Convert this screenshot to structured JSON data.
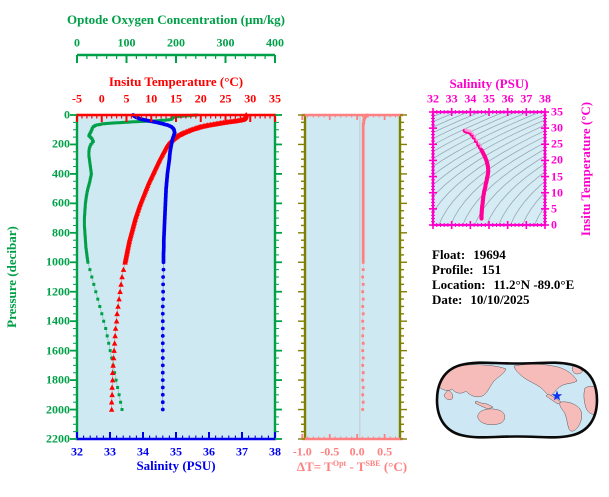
{
  "colors": {
    "oxygen": "#00a048",
    "temperature": "#ff0000",
    "salinity": "#0000ee",
    "delta_t": "#ff8080",
    "olive_axis": "#7f7f00",
    "magenta": "#ff00cc",
    "ts_curve": "#ff0099",
    "ts_curve_light": "#ff9ad8",
    "plot_bg": "#cfe9f3",
    "contour_gray": "#9aa8b2",
    "map_land": "#f6bcba",
    "map_ocean": "#cde7f5",
    "map_outline": "#0a0a0a",
    "star_blue": "#1133ee"
  },
  "info": {
    "float_label": "Float:",
    "float_value": "19694",
    "profile_label": "Profile:",
    "profile_value": "151",
    "location_label": "Location:",
    "location_value": "11.2°N  -89.0°E",
    "date_label": "Date:",
    "date_value": "10/10/2025"
  },
  "delta_t_label": {
    "prefix": "ΔT= T",
    "sup1": "Opt",
    "mid": " - T",
    "sup2": "SBE",
    "suffix": " (°C)"
  },
  "map": {
    "marker": "float-location-star",
    "marker_location": "11.2°N -89.0°E"
  },
  "chart_data": {
    "type": "line",
    "panels": {
      "main_profile": {
        "pressure_axis": {
          "label": "Pressure (decibar)",
          "min": 0,
          "max": 2200,
          "tick_values": [
            0,
            200,
            400,
            600,
            800,
            1000,
            1200,
            1400,
            1600,
            1800,
            2000,
            2200
          ],
          "tick_labels": [
            "0",
            "200",
            "400",
            "600",
            "800",
            "1000",
            "1200",
            "1400",
            "1600",
            "1800",
            "2000",
            "2200"
          ],
          "minor_step": 50
        },
        "oxygen_axis": {
          "label": "Optode Oxygen Concentration (µm/kg)",
          "min": 0,
          "max": 400,
          "tick_values": [
            0,
            100,
            200,
            300,
            400
          ],
          "tick_labels": [
            "0",
            "100",
            "200",
            "300",
            "400"
          ],
          "minor_step": 20
        },
        "temperature_axis": {
          "label": "Insitu Temperature (°C)",
          "min": -5,
          "max": 35,
          "tick_values": [
            -5,
            0,
            5,
            10,
            15,
            20,
            25,
            30,
            35
          ],
          "tick_labels": [
            "-5",
            "0",
            "5",
            "10",
            "15",
            "20",
            "25",
            "30",
            "35"
          ],
          "minor_step": 1
        },
        "salinity_axis": {
          "label": "Salinity (PSU)",
          "min": 32,
          "max": 38,
          "tick_values": [
            32,
            33,
            34,
            35,
            36,
            37,
            38
          ],
          "tick_labels": [
            "32",
            "33",
            "34",
            "35",
            "36",
            "37",
            "38"
          ],
          "minor_step": 0.2
        }
      },
      "delta_t_panel": {
        "x_axis": {
          "min": -0.95,
          "max": 0.78,
          "tick_values": [
            -1.0,
            -0.5,
            0.0,
            0.5
          ],
          "tick_labels": [
            "-1.0",
            "-0.5",
            "0.0",
            "0.5"
          ],
          "minor_step": 0.1,
          "zero_line": 0.05
        },
        "pressure_minor_step": 50,
        "pressure_major_step": 200
      },
      "ts_diagram": {
        "title": "Salinity (PSU)",
        "salinity_axis": {
          "min": 32,
          "max": 38,
          "tick_values": [
            32,
            33,
            34,
            35,
            36,
            37,
            38
          ],
          "tick_labels": [
            "32",
            "33",
            "34",
            "35",
            "36",
            "37",
            "38"
          ],
          "minor_step": 0.2
        },
        "temperature_axis": {
          "label": "Insitu Temperature (°C)",
          "min": 0,
          "max": 35,
          "tick_values": [
            0,
            5,
            10,
            15,
            20,
            25,
            30,
            35
          ],
          "tick_labels": [
            "0",
            "5",
            "10",
            "15",
            "20",
            "25",
            "30",
            "35"
          ],
          "minor_step": 1
        },
        "isopycnals": {
          "sigma_from": 19.5,
          "sigma_to": 33,
          "sigma_step": 0.5
        }
      }
    },
    "profile_columns": [
      "pressure_db",
      "temperature_c",
      "salinity_psu",
      "oxygen_umkg",
      "delta_t_c"
    ],
    "profile": [
      [
        0,
        29.2,
        33.7,
        242,
        0.18
      ],
      [
        4,
        29.1,
        33.72,
        228,
        0.17
      ],
      [
        8,
        29.1,
        33.74,
        212,
        0.16
      ],
      [
        12,
        29.0,
        33.77,
        200,
        0.15
      ],
      [
        16,
        29.0,
        33.8,
        195,
        0.14
      ],
      [
        20,
        28.9,
        33.84,
        193,
        0.14
      ],
      [
        25,
        28.8,
        33.9,
        192,
        0.13
      ],
      [
        30,
        28.6,
        33.97,
        190,
        0.13
      ],
      [
        35,
        28.0,
        34.07,
        178,
        0.12
      ],
      [
        40,
        27.1,
        34.18,
        158,
        0.12
      ],
      [
        45,
        26.0,
        34.3,
        122,
        0.12
      ],
      [
        50,
        24.9,
        34.42,
        95,
        0.12
      ],
      [
        55,
        24.0,
        34.51,
        70,
        0.12
      ],
      [
        60,
        23.2,
        34.6,
        52,
        0.11
      ],
      [
        70,
        21.4,
        34.76,
        38,
        0.11
      ],
      [
        80,
        20.0,
        34.86,
        33,
        0.11
      ],
      [
        90,
        19.0,
        34.91,
        31,
        0.11
      ],
      [
        100,
        18.1,
        34.94,
        30,
        0.11
      ],
      [
        120,
        16.6,
        34.96,
        27,
        0.11
      ],
      [
        140,
        15.4,
        34.93,
        24,
        0.11
      ],
      [
        160,
        14.6,
        34.9,
        30,
        0.11
      ],
      [
        180,
        14.0,
        34.88,
        33,
        0.11
      ],
      [
        200,
        13.4,
        34.86,
        28,
        0.11
      ],
      [
        225,
        12.9,
        34.84,
        25,
        0.11
      ],
      [
        250,
        12.5,
        34.82,
        24,
        0.11
      ],
      [
        275,
        12.1,
        34.81,
        24,
        0.11
      ],
      [
        300,
        11.7,
        34.8,
        25,
        0.11
      ],
      [
        350,
        11.0,
        34.77,
        27,
        0.11
      ],
      [
        400,
        10.3,
        34.74,
        29,
        0.11
      ],
      [
        450,
        9.6,
        34.72,
        26,
        0.11
      ],
      [
        500,
        9.0,
        34.7,
        22,
        0.11
      ],
      [
        550,
        8.4,
        34.69,
        19,
        0.11
      ],
      [
        600,
        7.8,
        34.68,
        17,
        0.11
      ],
      [
        650,
        7.3,
        34.67,
        16,
        0.11
      ],
      [
        700,
        6.8,
        34.66,
        15,
        0.11
      ],
      [
        750,
        6.4,
        34.65,
        15,
        0.11
      ],
      [
        800,
        6.0,
        34.64,
        16,
        0.11
      ],
      [
        850,
        5.6,
        34.63,
        17,
        0.11
      ],
      [
        900,
        5.3,
        34.63,
        18,
        0.11
      ],
      [
        950,
        5.0,
        34.62,
        20,
        0.11
      ],
      [
        1000,
        4.7,
        34.62,
        22,
        0.11
      ],
      [
        1050,
        4.4,
        34.62,
        26,
        0.11
      ],
      [
        1100,
        4.1,
        34.61,
        30,
        0.1
      ],
      [
        1150,
        3.9,
        34.61,
        34,
        0.11
      ],
      [
        1200,
        3.7,
        34.61,
        38,
        0.1
      ],
      [
        1250,
        3.5,
        34.61,
        42,
        0.11
      ],
      [
        1300,
        3.3,
        34.6,
        46,
        0.1
      ],
      [
        1350,
        3.1,
        34.6,
        50,
        0.11
      ],
      [
        1400,
        3.0,
        34.6,
        54,
        0.1
      ],
      [
        1450,
        2.8,
        34.6,
        58,
        0.11
      ],
      [
        1500,
        2.7,
        34.6,
        61,
        0.1
      ],
      [
        1550,
        2.6,
        34.6,
        64,
        0.11
      ],
      [
        1600,
        2.5,
        34.6,
        67,
        0.1
      ],
      [
        1650,
        2.4,
        34.6,
        70,
        0.11
      ],
      [
        1700,
        2.3,
        34.6,
        73,
        0.1
      ],
      [
        1750,
        2.2,
        34.6,
        76,
        0.11
      ],
      [
        1800,
        2.2,
        34.6,
        79,
        0.1
      ],
      [
        1850,
        2.1,
        34.6,
        82,
        0.11
      ],
      [
        1900,
        2.1,
        34.6,
        85,
        0.1
      ],
      [
        1950,
        2.0,
        34.6,
        88,
        0.11
      ],
      [
        2000,
        2.0,
        34.6,
        91,
        0.1
      ]
    ]
  }
}
